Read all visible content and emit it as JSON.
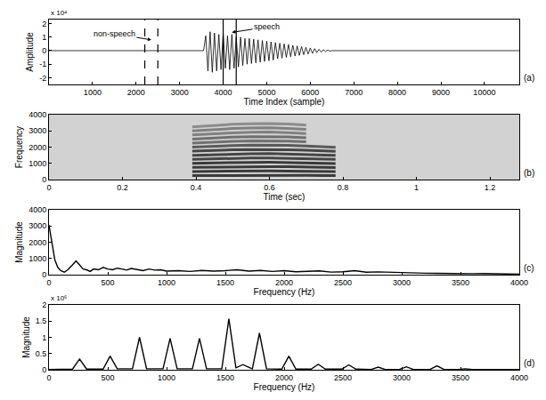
{
  "chart_data": [
    {
      "type": "line",
      "panel_label": "(a)",
      "y_scale_label": "x 10⁴",
      "xlabel": "Time Index (sample)",
      "ylabel": "Amplitude",
      "color": "#000000",
      "x": [
        0,
        3550,
        3600,
        3650,
        3700,
        3750,
        3800,
        3850,
        3900,
        3950,
        4000,
        4050,
        4100,
        4150,
        4200,
        4250,
        4300,
        4350,
        4400,
        4450,
        4500,
        4550,
        4600,
        4650,
        4700,
        4750,
        4800,
        4850,
        4900,
        4950,
        5000,
        5050,
        5100,
        5150,
        5200,
        5250,
        5300,
        5350,
        5400,
        5450,
        5500,
        5550,
        5600,
        5650,
        5700,
        5750,
        5800,
        5850,
        5900,
        5950,
        6000,
        6050,
        6100,
        6150,
        6200,
        6250,
        6300,
        6350,
        6400,
        6450,
        6500,
        10800
      ],
      "values": [
        0,
        0,
        1.1,
        -1.5,
        1.4,
        -1.6,
        1.3,
        -1.5,
        1.2,
        -1.4,
        1.3,
        -1.3,
        1.1,
        -1.4,
        1.2,
        -1.3,
        1.0,
        -1.2,
        1.0,
        -1.1,
        0.9,
        -1.0,
        0.9,
        -0.95,
        0.85,
        -0.9,
        0.8,
        -0.85,
        0.75,
        -0.8,
        0.7,
        -0.75,
        0.65,
        -0.7,
        0.6,
        -0.6,
        0.55,
        -0.55,
        0.5,
        -0.5,
        0.45,
        -0.45,
        0.4,
        -0.4,
        0.35,
        -0.35,
        0.3,
        -0.3,
        0.25,
        -0.25,
        0.2,
        -0.2,
        0.15,
        -0.15,
        0.1,
        -0.1,
        0.07,
        -0.06,
        0.04,
        -0.03,
        0,
        0
      ],
      "xlim": [
        0,
        10800
      ],
      "xticks": [
        1000,
        2000,
        3000,
        4000,
        5000,
        6000,
        7000,
        8000,
        9000,
        10000
      ],
      "ylim": [
        -2.5,
        2.3
      ],
      "yticks": [
        -2,
        -1,
        0,
        1,
        2
      ],
      "annotations": [
        {
          "text": "non-speech",
          "text_at": [
            1500,
            1.25
          ],
          "arrow_to": [
            2350,
            0.8
          ],
          "span": [
            2200,
            2500
          ],
          "line_style": "dashed"
        },
        {
          "text": "speech",
          "text_at": [
            5000,
            1.75
          ],
          "arrow_to": [
            4200,
            1.35
          ],
          "span": [
            4000,
            4300
          ],
          "line_style": "solid"
        }
      ]
    },
    {
      "type": "spectrogram",
      "panel_label": "(b)",
      "xlabel": "Time (sec)",
      "ylabel": "Frequency",
      "x": [
        0.39,
        0.45,
        0.5,
        0.55,
        0.6,
        0.65,
        0.7,
        0.75,
        0.78
      ],
      "series": [
        {
          "color": "#3a3a3a",
          "values": [
            250,
            258,
            262,
            265,
            266,
            263,
            258,
            252,
            248
          ]
        },
        {
          "color": "#3a3a3a",
          "values": [
            500,
            516,
            524,
            530,
            532,
            526,
            516,
            504,
            496
          ]
        },
        {
          "color": "#3a3a3a",
          "values": [
            750,
            774,
            786,
            795,
            798,
            789,
            774,
            756,
            744
          ]
        },
        {
          "color": "#3a3a3a",
          "values": [
            1000,
            1032,
            1048,
            1060,
            1064,
            1052,
            1032,
            1008,
            992
          ]
        },
        {
          "color": "#454545",
          "values": [
            1250,
            1290,
            1310,
            1325,
            1330,
            1315,
            1290,
            1260,
            1240
          ]
        },
        {
          "color": "#454545",
          "values": [
            1500,
            1548,
            1572,
            1590,
            1596,
            1578,
            1548,
            1512,
            1488
          ]
        },
        {
          "color": "#454545",
          "values": [
            1750,
            1806,
            1834,
            1855,
            1862,
            1841,
            1806,
            1764,
            1736
          ]
        },
        {
          "color": "#5a5a5a",
          "values": [
            2000,
            2064,
            2096,
            2120,
            2128,
            2104,
            2064,
            2016,
            1984
          ]
        },
        {
          "color": "#707070",
          "values": [
            2250,
            2322,
            2358,
            2385,
            2394,
            2367,
            2322,
            null,
            null
          ]
        },
        {
          "color": "#707070",
          "values": [
            2500,
            2580,
            2620,
            2650,
            2660,
            2630,
            2580,
            null,
            null
          ]
        },
        {
          "color": "#808080",
          "values": [
            2750,
            2838,
            2882,
            2915,
            2926,
            2893,
            2838,
            null,
            null
          ]
        },
        {
          "color": "#808080",
          "values": [
            3000,
            3096,
            3144,
            3180,
            3192,
            3156,
            3096,
            null,
            null
          ]
        },
        {
          "color": "#8c8c8c",
          "values": [
            3250,
            3354,
            3406,
            3445,
            3458,
            3419,
            3354,
            null,
            null
          ]
        }
      ],
      "xlim": [
        0,
        1.28
      ],
      "xticks": [
        0,
        0.2,
        0.4,
        0.6,
        0.8,
        1,
        1.2
      ],
      "ylim": [
        0,
        4000
      ],
      "yticks": [
        0,
        1000,
        2000,
        3000,
        4000
      ]
    },
    {
      "type": "line",
      "panel_label": "(c)",
      "xlabel": "Frequency (Hz)",
      "ylabel": "Magnitude",
      "color": "#000000",
      "x": [
        0,
        25,
        50,
        75,
        100,
        130,
        160,
        200,
        230,
        260,
        290,
        320,
        350,
        380,
        420,
        460,
        500,
        540,
        580,
        620,
        660,
        700,
        750,
        800,
        850,
        900,
        950,
        1000,
        1100,
        1200,
        1300,
        1400,
        1500,
        1600,
        1700,
        1800,
        1900,
        2000,
        2100,
        2200,
        2300,
        2400,
        2500,
        2600,
        2700,
        2800,
        2900,
        3000,
        3100,
        3200,
        3300,
        3400,
        3500,
        3600,
        3700,
        3800,
        3900,
        4000
      ],
      "values": [
        3050,
        2000,
        900,
        450,
        250,
        150,
        300,
        600,
        850,
        600,
        350,
        300,
        200,
        350,
        300,
        450,
        350,
        300,
        400,
        350,
        280,
        380,
        300,
        250,
        350,
        280,
        300,
        220,
        250,
        200,
        260,
        220,
        250,
        300,
        220,
        260,
        200,
        250,
        180,
        200,
        230,
        160,
        180,
        250,
        150,
        170,
        140,
        150,
        100,
        90,
        80,
        60,
        70,
        60,
        70,
        50,
        40,
        30
      ],
      "xlim": [
        0,
        4000
      ],
      "xticks": [
        0,
        500,
        1000,
        1500,
        2000,
        2500,
        3000,
        3500,
        4000
      ],
      "ylim": [
        0,
        4000
      ],
      "yticks": [
        0,
        1000,
        2000,
        3000,
        4000
      ]
    },
    {
      "type": "line",
      "panel_label": "(d)",
      "y_scale_label": "x 10⁶",
      "xlabel": "Frequency (Hz)",
      "ylabel": "Magnitude",
      "color": "#000000",
      "x": [
        0,
        200,
        260,
        320,
        460,
        520,
        580,
        710,
        770,
        830,
        970,
        1030,
        1090,
        1220,
        1280,
        1340,
        1470,
        1530,
        1590,
        1650,
        1710,
        1730,
        1790,
        1850,
        1980,
        2040,
        2100,
        2230,
        2290,
        2350,
        2490,
        2550,
        2610,
        2740,
        2800,
        2860,
        2980,
        3040,
        3100,
        3240,
        3300,
        3360,
        3480,
        3540,
        3600,
        4000
      ],
      "values": [
        0.01,
        0.02,
        0.33,
        0.02,
        0.02,
        0.42,
        0.03,
        0.03,
        1.0,
        0.03,
        0.03,
        0.97,
        0.03,
        0.03,
        0.97,
        0.03,
        0.03,
        1.57,
        0.06,
        0.16,
        0.06,
        0.03,
        1.13,
        0.03,
        0.02,
        0.42,
        0.02,
        0.02,
        0.17,
        0.02,
        0.02,
        0.15,
        0.02,
        0.01,
        0.08,
        0.01,
        0.01,
        0.09,
        0.01,
        0.01,
        0.12,
        0.01,
        0.01,
        0.03,
        0.01,
        0.01
      ],
      "xlim": [
        0,
        4000
      ],
      "xticks": [
        0,
        500,
        1000,
        1500,
        2000,
        2500,
        3000,
        3500,
        4000
      ],
      "ylim": [
        0,
        2
      ],
      "yticks": [
        0,
        0.5,
        1,
        1.5,
        2
      ]
    }
  ]
}
